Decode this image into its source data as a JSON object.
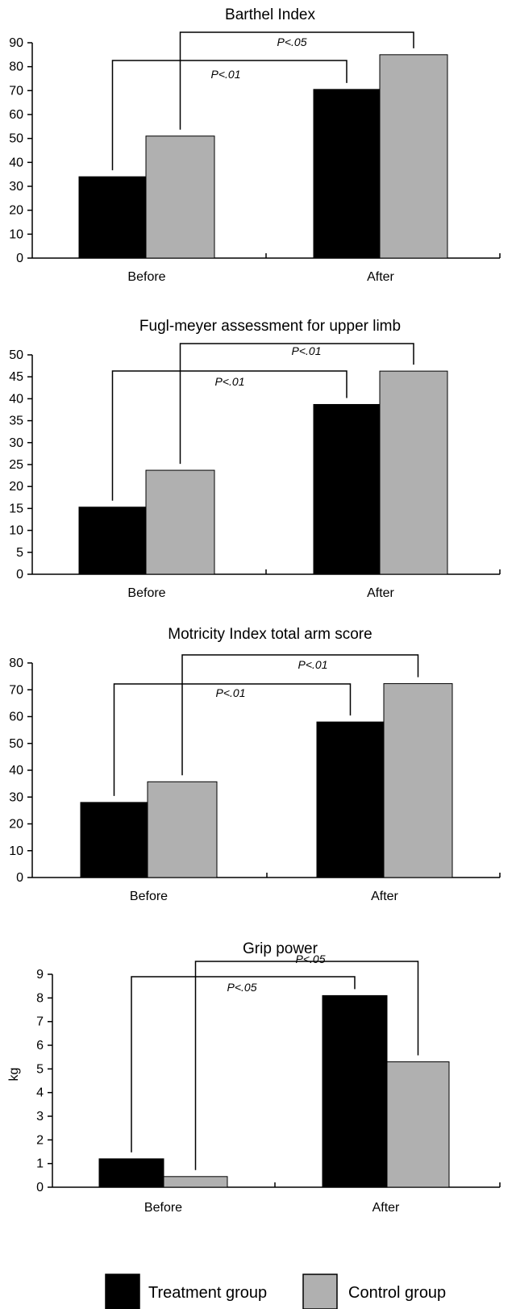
{
  "legend": {
    "items": [
      {
        "label": "Treatment group",
        "color": "#000000"
      },
      {
        "label": "Control group",
        "color": "#b0b0b0"
      }
    ]
  },
  "chart_data": [
    {
      "type": "bar",
      "title": "Barthel Index",
      "xlabel": "",
      "ylabel": "",
      "categories": [
        "Before",
        "After"
      ],
      "series": [
        {
          "name": "Treatment group",
          "values": [
            34,
            70.5
          ],
          "color": "#000000"
        },
        {
          "name": "Control group",
          "values": [
            51,
            85
          ],
          "color": "#b0b0b0"
        }
      ],
      "ylim": [
        0,
        90
      ],
      "yticks": [
        0,
        10,
        20,
        30,
        40,
        50,
        60,
        70,
        80,
        90
      ],
      "significance": [
        {
          "label": "P<.05",
          "series": "Control group"
        },
        {
          "label": "P<.01",
          "series": "Treatment group"
        }
      ]
    },
    {
      "type": "bar",
      "title": "Fugl-meyer assessment for upper limb",
      "xlabel": "",
      "ylabel": "",
      "categories": [
        "Before",
        "After"
      ],
      "series": [
        {
          "name": "Treatment group",
          "values": [
            15.3,
            38.7
          ],
          "color": "#000000"
        },
        {
          "name": "Control group",
          "values": [
            23.7,
            46.3
          ],
          "color": "#b0b0b0"
        }
      ],
      "ylim": [
        0,
        50
      ],
      "yticks": [
        0,
        5,
        10,
        15,
        20,
        25,
        30,
        35,
        40,
        45,
        50
      ],
      "significance": [
        {
          "label": "P<.01",
          "series": "Control group"
        },
        {
          "label": "P<.01",
          "series": "Treatment group"
        }
      ]
    },
    {
      "type": "bar",
      "title": "Motricity Index total arm score",
      "xlabel": "",
      "ylabel": "",
      "categories": [
        "Before",
        "After"
      ],
      "series": [
        {
          "name": "Treatment group",
          "values": [
            28,
            58
          ],
          "color": "#000000"
        },
        {
          "name": "Control group",
          "values": [
            35.7,
            72.3
          ],
          "color": "#b0b0b0"
        }
      ],
      "ylim": [
        0,
        80
      ],
      "yticks": [
        0,
        10,
        20,
        30,
        40,
        50,
        60,
        70,
        80
      ],
      "significance": [
        {
          "label": "P<.01",
          "series": "Control group"
        },
        {
          "label": "P<.01",
          "series": "Treatment group"
        }
      ]
    },
    {
      "type": "bar",
      "title": "Grip power",
      "xlabel": "",
      "ylabel": "kg",
      "categories": [
        "Before",
        "After"
      ],
      "series": [
        {
          "name": "Treatment group",
          "values": [
            1.2,
            8.1
          ],
          "color": "#000000"
        },
        {
          "name": "Control group",
          "values": [
            0.45,
            5.3
          ],
          "color": "#b0b0b0"
        }
      ],
      "ylim": [
        0,
        9
      ],
      "yticks": [
        0,
        1,
        2,
        3,
        4,
        5,
        6,
        7,
        8,
        9
      ],
      "significance": [
        {
          "label": "P<.05",
          "series": "Control group"
        },
        {
          "label": "P<.05",
          "series": "Treatment group"
        }
      ]
    }
  ]
}
